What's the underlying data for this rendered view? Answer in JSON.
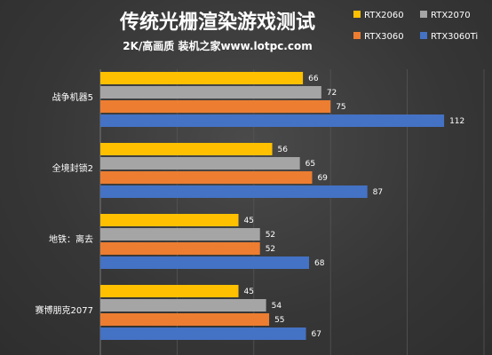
{
  "title": "传统光栅渲染游戏测试",
  "subtitle": "2K/高画质  装机之家www.lotpc.com",
  "chart_data": {
    "type": "bar",
    "orientation": "horizontal",
    "categories": [
      "战争机器5",
      "全境封锁2",
      "地铁：离去",
      "赛博朋克2077"
    ],
    "series": [
      {
        "name": "RTX2060",
        "color": "#FFC000",
        "values": [
          66,
          56,
          45,
          45
        ]
      },
      {
        "name": "RTX2070",
        "color": "#A5A5A5",
        "values": [
          72,
          65,
          52,
          54
        ]
      },
      {
        "name": "RTX3060",
        "color": "#ED7D31",
        "values": [
          75,
          69,
          52,
          55
        ]
      },
      {
        "name": "RTX3060Ti",
        "color": "#4472C4",
        "values": [
          112,
          87,
          68,
          67
        ]
      }
    ],
    "xlim": [
      0,
      125
    ],
    "grid": true,
    "legend_position": "top-right"
  }
}
